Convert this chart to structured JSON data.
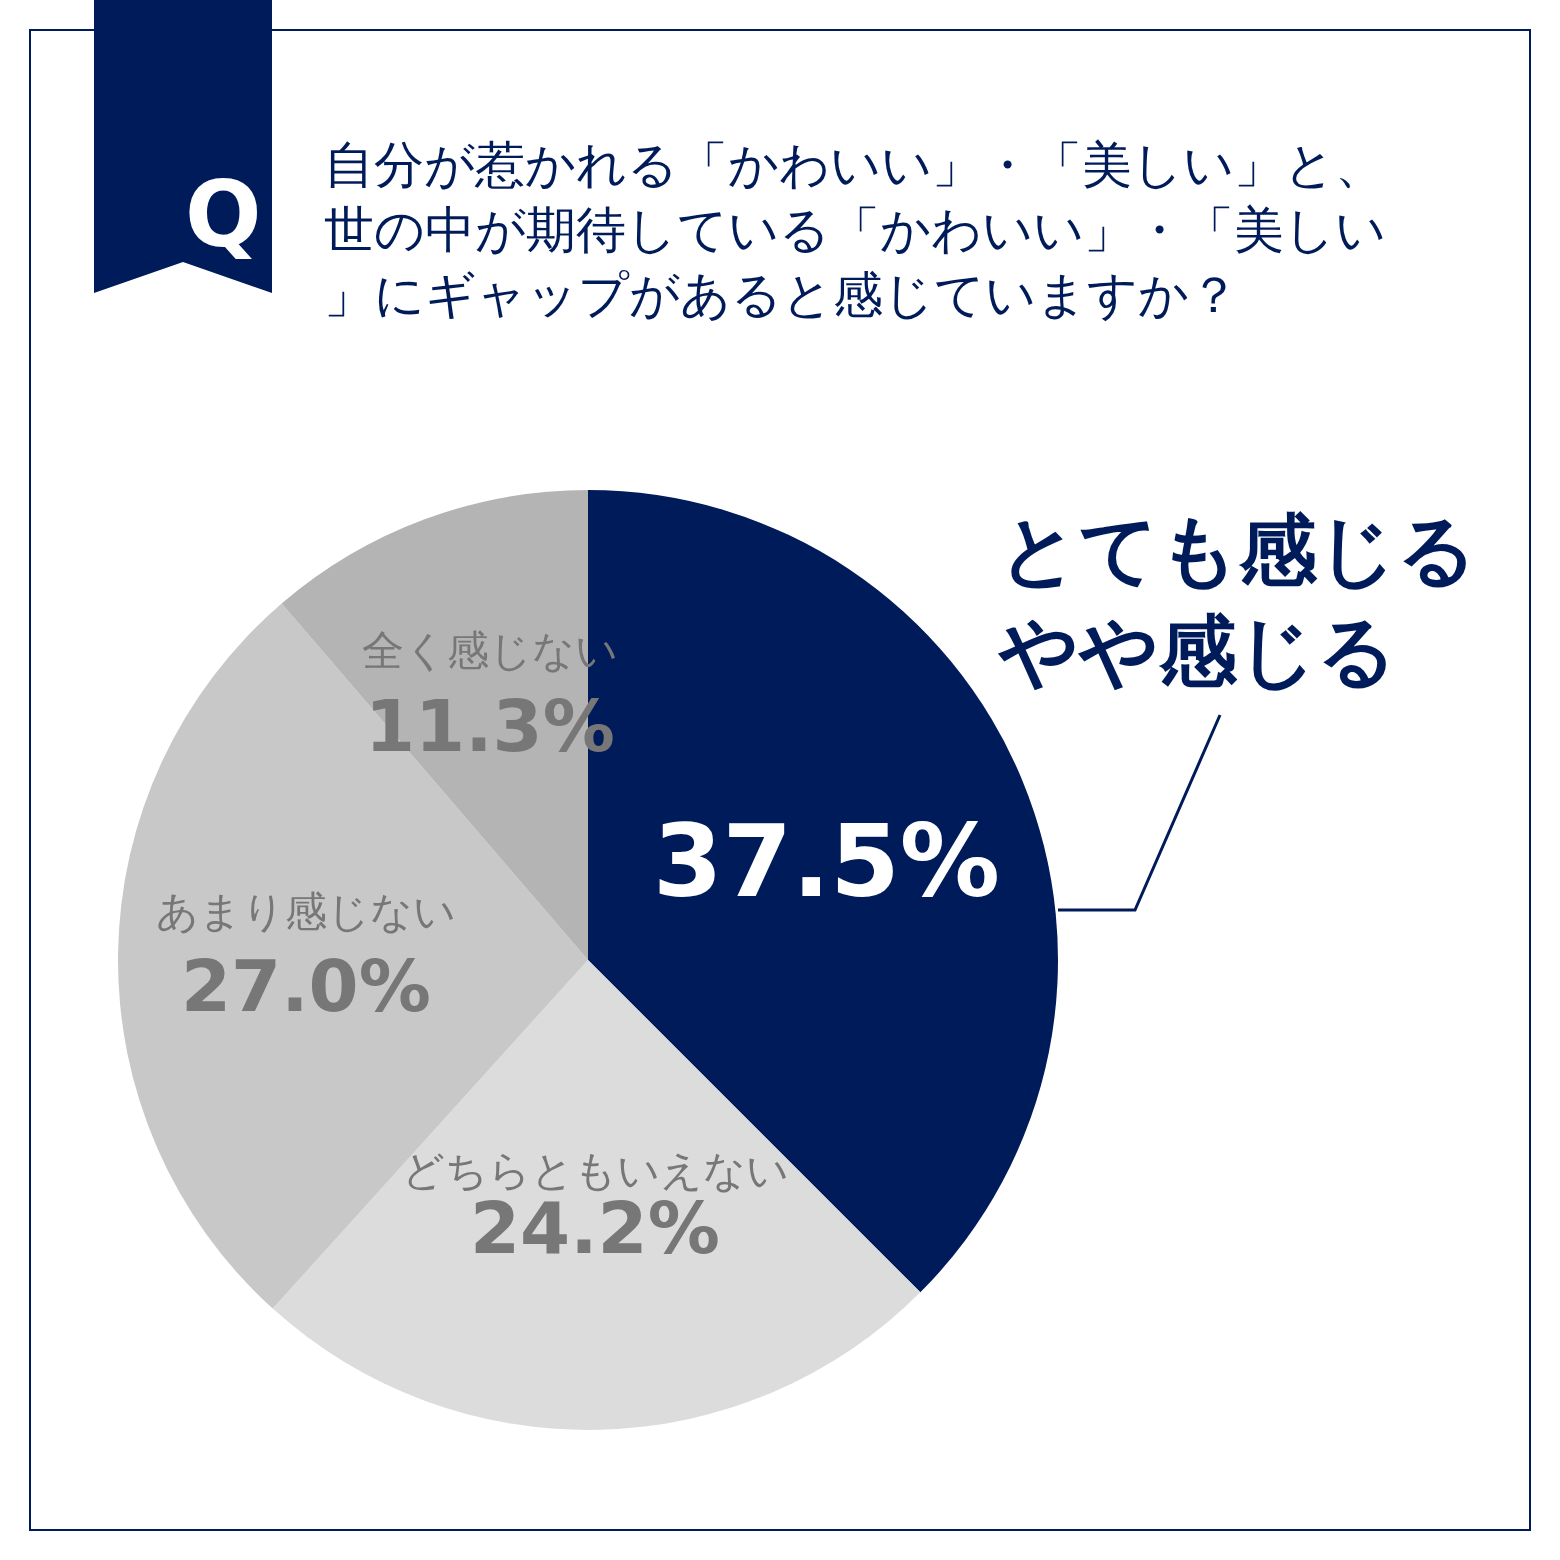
{
  "chart_data": {
    "type": "pie",
    "title": "自分が惹かれる「かわいい」・「美しい」と、世の中が期待している「かわいい」・「美しい」にギャップがあると感じていますか？",
    "annotations": [
      "Q"
    ],
    "categories": [
      "とても感じるやや感じる",
      "どちらともいえない",
      "あまり感じない",
      "全く感じない"
    ],
    "values": [
      37.5,
      24.2,
      27.0,
      11.3
    ],
    "value_labels": [
      "37.5%",
      "24.2%",
      "27.0%",
      "11.3%"
    ],
    "colors": [
      "#001b5a",
      "#dcdcdc",
      "#c8c8c8",
      "#b4b4b4"
    ],
    "legend": false
  }
}
